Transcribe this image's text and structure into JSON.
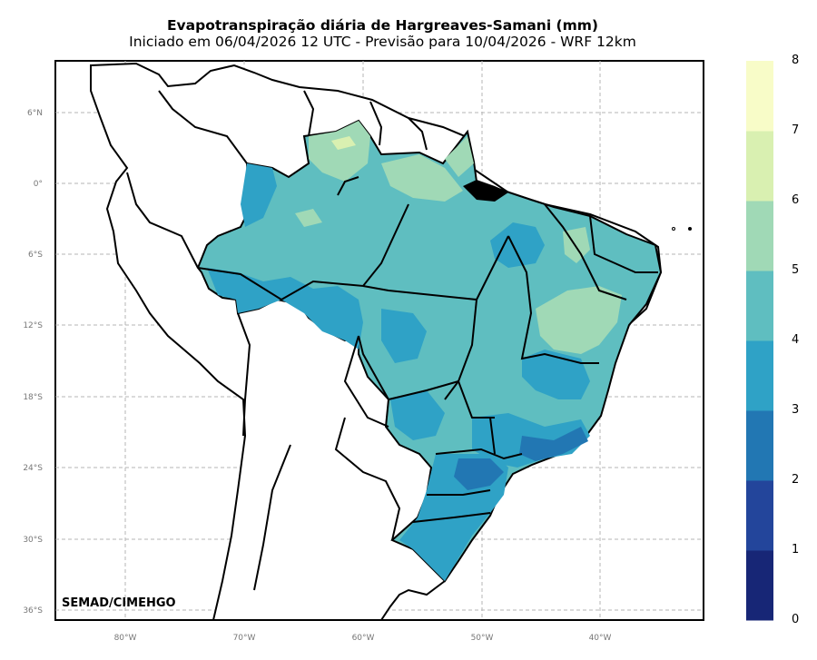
{
  "title": "Evapotranspiração diária de Hargreaves-Samani (mm)",
  "subtitle": "Iniciado em 06/04/2026 12 UTC - Previsão para 10/04/2026 - WRF 12km",
  "credit": "SEMAD/CIMEHGO",
  "lat_labels": [
    "6°N",
    "0°",
    "6°S",
    "12°S",
    "18°S",
    "24°S",
    "30°S",
    "36°S"
  ],
  "lon_labels": [
    "80°W",
    "70°W",
    "60°W",
    "50°W",
    "40°W"
  ],
  "colorbar": {
    "ticks": [
      "0",
      "1",
      "2",
      "3",
      "4",
      "5",
      "6",
      "7",
      "8"
    ],
    "colors": [
      "#172676",
      "#23459b",
      "#2277b3",
      "#2fa2c6",
      "#5fbec0",
      "#a0d9b6",
      "#d9f0b1",
      "#f8fcc8"
    ]
  },
  "map_colors": {
    "land": "#ffffff",
    "ocean": "#ffffff",
    "border": "#000000",
    "grid": "#b5b5b5"
  }
}
